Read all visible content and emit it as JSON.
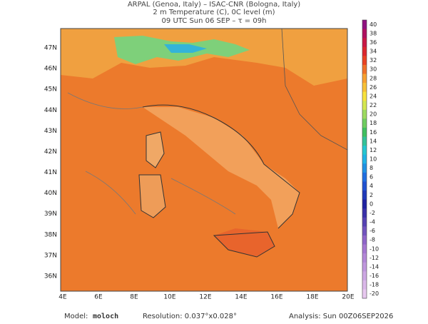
{
  "header": {
    "lines": [
      "ARPAL (Genoa, Italy)  –  ISAC-CNR (Bologna, Italy)",
      "2 m Temperature (C), 0C level (m)",
      "09 UTC Sun 06 SEP  –  τ = 09h"
    ]
  },
  "map": {
    "lon_labels": [
      "4E",
      "6E",
      "8E",
      "10E",
      "12E",
      "14E",
      "16E",
      "18E",
      "20E"
    ],
    "lat_labels": [
      "47N",
      "46N",
      "45N",
      "44N",
      "43N",
      "42N",
      "41N",
      "40N",
      "39N",
      "38N",
      "37N",
      "36N"
    ]
  },
  "colorbar": {
    "levels": [
      40,
      38,
      36,
      34,
      32,
      30,
      28,
      26,
      24,
      22,
      20,
      18,
      16,
      14,
      12,
      10,
      8,
      6,
      4,
      2,
      0,
      -2,
      -4,
      -6,
      -8,
      -10,
      -12,
      -14,
      -16,
      -18,
      -20
    ]
  },
  "footer": {
    "model_label": "Model:",
    "model": "moloch",
    "resolution": "Resolution: 0.037°x0.028°",
    "analysis": "Analysis: Sun 00Z06SEP2026"
  }
}
